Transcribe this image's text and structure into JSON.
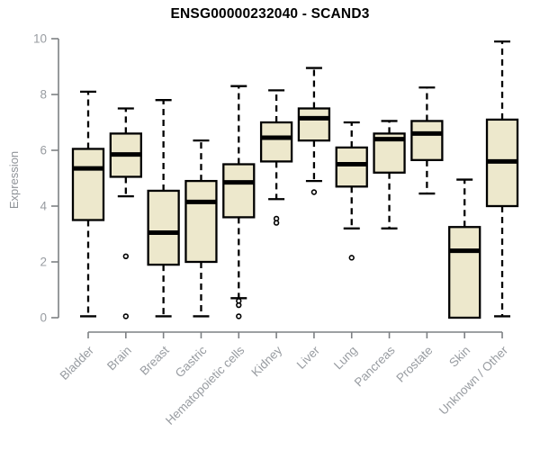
{
  "header": {
    "title": "ENSG00000232040 - SCAND3"
  },
  "chart_data": {
    "type": "boxplot",
    "title": "ENSG00000232040 - SCAND3",
    "xlabel": "",
    "ylabel": "Expression",
    "ylim": [
      0,
      10
    ],
    "yticks": [
      0,
      2,
      4,
      6,
      8,
      10
    ],
    "grid": false,
    "legend": "none",
    "categories": [
      "Bladder",
      "Brain",
      "Breast",
      "Gastric",
      "Hematopoietic cells",
      "Kidney",
      "Liver",
      "Lung",
      "Pancreas",
      "Prostate",
      "Skin",
      "Unknown / Other"
    ],
    "series": [
      {
        "name": "Bladder",
        "low": 0.05,
        "q1": 3.5,
        "median": 5.35,
        "q3": 6.05,
        "high": 8.1,
        "outliers": []
      },
      {
        "name": "Brain",
        "low": 4.35,
        "q1": 5.05,
        "median": 5.85,
        "q3": 6.6,
        "high": 7.5,
        "outliers": [
          2.2,
          0.05
        ]
      },
      {
        "name": "Breast",
        "low": 0.05,
        "q1": 1.9,
        "median": 3.05,
        "q3": 4.55,
        "high": 7.8,
        "outliers": []
      },
      {
        "name": "Gastric",
        "low": 0.05,
        "q1": 2.0,
        "median": 4.15,
        "q3": 4.9,
        "high": 6.35,
        "outliers": []
      },
      {
        "name": "Hematopoietic cells",
        "low": 0.7,
        "q1": 3.6,
        "median": 4.85,
        "q3": 5.5,
        "high": 8.3,
        "outliers": [
          0.6,
          0.45,
          0.05
        ]
      },
      {
        "name": "Kidney",
        "low": 4.25,
        "q1": 5.6,
        "median": 6.45,
        "q3": 7.0,
        "high": 8.15,
        "outliers": [
          3.55,
          3.4
        ]
      },
      {
        "name": "Liver",
        "low": 4.9,
        "q1": 6.35,
        "median": 7.15,
        "q3": 7.5,
        "high": 8.95,
        "outliers": [
          4.5
        ]
      },
      {
        "name": "Lung",
        "low": 3.2,
        "q1": 4.7,
        "median": 5.5,
        "q3": 6.1,
        "high": 7.0,
        "outliers": [
          2.15
        ]
      },
      {
        "name": "Pancreas",
        "low": 3.2,
        "q1": 5.2,
        "median": 6.4,
        "q3": 6.6,
        "high": 7.05,
        "outliers": []
      },
      {
        "name": "Prostate",
        "low": 4.45,
        "q1": 5.65,
        "median": 6.6,
        "q3": 7.05,
        "high": 8.25,
        "outliers": []
      },
      {
        "name": "Skin",
        "low": 0.0,
        "q1": 0.0,
        "median": 2.4,
        "q3": 3.25,
        "high": 4.95,
        "outliers": []
      },
      {
        "name": "Unknown / Other",
        "low": 0.05,
        "q1": 4.0,
        "median": 5.6,
        "q3": 7.1,
        "high": 9.9,
        "outliers": []
      }
    ],
    "colors": {
      "box_fill": "#EDE8CC",
      "box_stroke": "#000000",
      "median": "#000000",
      "whisker": "#000000",
      "outlier_stroke": "#000000",
      "outlier_fill": "#ffffff",
      "axis_line": "#7d8084",
      "tick_text": "#989ca1",
      "title_text": "#000000"
    }
  }
}
